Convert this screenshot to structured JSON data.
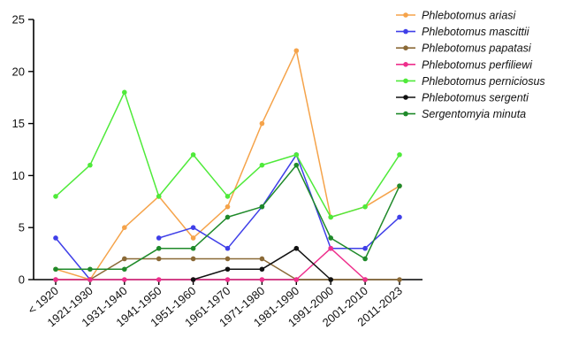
{
  "chart_data": {
    "type": "line",
    "categories": [
      "< 1920",
      "1921-1930",
      "1931-1940",
      "1941-1950",
      "1951-1960",
      "1961-1970",
      "1971-1980",
      "1981-1990",
      "1991-2000",
      "2001-2010",
      "2011-2023"
    ],
    "ylim": [
      0,
      25
    ],
    "yticks": [
      0,
      5,
      10,
      15,
      20,
      25
    ],
    "legend_position": "top-right",
    "grid": false,
    "series": [
      {
        "name": "Phlebotomus ariasi",
        "color": "#f5a34a",
        "values": [
          1,
          0,
          5,
          8,
          4,
          7,
          15,
          22,
          6,
          7,
          9
        ]
      },
      {
        "name": "Phlebotomus mascittii",
        "color": "#3f3fe8",
        "values": [
          4,
          0,
          null,
          4,
          5,
          3,
          7,
          12,
          3,
          3,
          6
        ]
      },
      {
        "name": "Phlebotomus papatasi",
        "color": "#8b6a37",
        "values": [
          0,
          0,
          2,
          2,
          2,
          2,
          2,
          0,
          0,
          0,
          0
        ]
      },
      {
        "name": "Phlebotomus perfiliewi",
        "color": "#ee2f8c",
        "values": [
          0,
          0,
          0,
          0,
          0,
          0,
          0,
          0,
          3,
          0,
          null
        ]
      },
      {
        "name": "Phlebotomus perniciosus",
        "color": "#4fea3a",
        "values": [
          8,
          11,
          18,
          8,
          12,
          8,
          11,
          12,
          6,
          7,
          12
        ]
      },
      {
        "name": "Phlebotomus sergenti",
        "color": "#111111",
        "values": [
          null,
          null,
          null,
          null,
          0,
          1,
          1,
          3,
          0,
          null,
          null
        ]
      },
      {
        "name": "Sergentomyia minuta",
        "color": "#1f8a2a",
        "values": [
          1,
          1,
          1,
          3,
          3,
          6,
          7,
          11,
          4,
          2,
          9
        ]
      }
    ]
  }
}
